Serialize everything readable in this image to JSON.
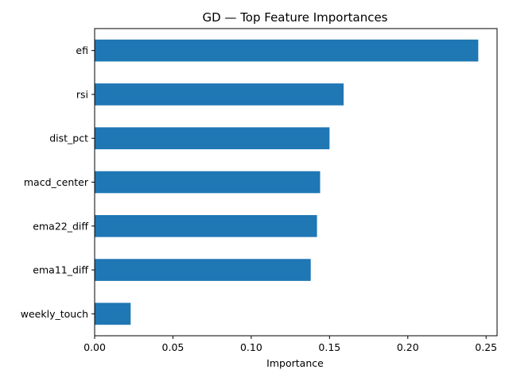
{
  "chart_data": {
    "type": "bar",
    "orientation": "horizontal",
    "title": "GD — Top Feature Importances",
    "xlabel": "Importance",
    "ylabel": "",
    "categories": [
      "efi",
      "rsi",
      "dist_pct",
      "macd_center",
      "ema22_diff",
      "ema11_diff",
      "weekly_touch"
    ],
    "values": [
      0.245,
      0.159,
      0.15,
      0.144,
      0.142,
      0.138,
      0.023
    ],
    "xlim": [
      0,
      0.257
    ],
    "xticks": [
      0.0,
      0.05,
      0.1,
      0.15,
      0.2,
      0.25
    ],
    "xtick_labels": [
      "0.00",
      "0.05",
      "0.10",
      "0.15",
      "0.20",
      "0.25"
    ],
    "bar_color": "#1f77b4",
    "grid": false,
    "legend": "none"
  }
}
